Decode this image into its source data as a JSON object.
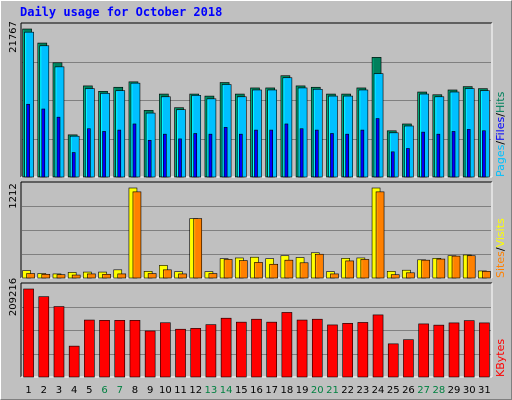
{
  "title": "Daily usage for October 2018",
  "colors": {
    "background": "#c0c0c0",
    "title": "#0000ff",
    "hits": "#00805c",
    "files": "#0000ff",
    "pages": "#00c0ff",
    "sites": "#ff8000",
    "visits": "#ffff00",
    "kbytes": "#ff0000",
    "weekday": "#000000",
    "weekend": "#008040"
  },
  "chart_data": [
    {
      "type": "bar",
      "panel": "hits-files-pages",
      "axis_label": "21767",
      "legend": [
        "Pages",
        "/",
        "Files",
        "/",
        "Hits"
      ],
      "x": [
        1,
        2,
        3,
        4,
        5,
        6,
        7,
        8,
        9,
        10,
        11,
        12,
        13,
        14,
        15,
        16,
        17,
        18,
        19,
        20,
        21,
        22,
        23,
        24,
        25,
        26,
        27,
        28,
        29,
        30,
        31
      ],
      "ylim": [
        0,
        21767
      ],
      "series": [
        {
          "name": "Hits",
          "values": [
            21767,
            19700,
            16800,
            6200,
            13400,
            12600,
            13200,
            14000,
            9800,
            12200,
            10200,
            12200,
            11900,
            13900,
            12200,
            13100,
            13100,
            14900,
            13400,
            13200,
            12200,
            12200,
            13100,
            17600,
            6800,
            7800,
            12500,
            12100,
            12800,
            13300,
            13000
          ]
        },
        {
          "name": "Files",
          "values": [
            10700,
            10000,
            8800,
            3600,
            7100,
            6700,
            6900,
            7800,
            5400,
            6300,
            5600,
            6400,
            6300,
            7300,
            6300,
            6900,
            6900,
            7800,
            7100,
            6900,
            6400,
            6300,
            6900,
            8600,
            3700,
            4200,
            6600,
            6300,
            6700,
            7000,
            6800
          ]
        },
        {
          "name": "Pages",
          "values": [
            21300,
            19300,
            16200,
            6000,
            13000,
            12300,
            12700,
            13800,
            9400,
            11800,
            9900,
            12000,
            11500,
            13600,
            11800,
            12800,
            12800,
            14600,
            13100,
            12900,
            11900,
            11900,
            12800,
            15200,
            6500,
            7500,
            12200,
            11800,
            12500,
            13000,
            12700
          ]
        }
      ]
    },
    {
      "type": "bar",
      "panel": "sites-visits",
      "axis_label": "1212",
      "legend": [
        "Sites",
        "/",
        "Visits"
      ],
      "x": [
        1,
        2,
        3,
        4,
        5,
        6,
        7,
        8,
        9,
        10,
        11,
        12,
        13,
        14,
        15,
        16,
        17,
        18,
        19,
        20,
        21,
        22,
        23,
        24,
        25,
        26,
        27,
        28,
        29,
        30,
        31
      ],
      "ylim": [
        0,
        1212
      ],
      "series": [
        {
          "name": "Sites",
          "values": [
            60,
            50,
            45,
            40,
            55,
            50,
            55,
            1160,
            60,
            110,
            55,
            800,
            60,
            250,
            235,
            210,
            185,
            240,
            205,
            320,
            55,
            230,
            250,
            1160,
            45,
            70,
            240,
            255,
            295,
            300,
            90
          ]
        },
        {
          "name": "Visits",
          "values": [
            100,
            60,
            55,
            75,
            80,
            80,
            110,
            1212,
            90,
            170,
            85,
            800,
            85,
            260,
            270,
            280,
            260,
            300,
            275,
            340,
            85,
            265,
            270,
            1212,
            90,
            105,
            245,
            265,
            300,
            310,
            95
          ]
        }
      ]
    },
    {
      "type": "bar",
      "panel": "kbytes",
      "axis_label": "209216",
      "legend": [
        "KBytes"
      ],
      "x": [
        1,
        2,
        3,
        4,
        5,
        6,
        7,
        8,
        9,
        10,
        11,
        12,
        13,
        14,
        15,
        16,
        17,
        18,
        19,
        20,
        21,
        22,
        23,
        24,
        25,
        26,
        27,
        28,
        29,
        30,
        31
      ],
      "ylim": [
        0,
        209216
      ],
      "series": [
        {
          "name": "KBytes",
          "values": [
            209216,
            191000,
            167500,
            73400,
            135400,
            134700,
            134700,
            134700,
            109400,
            129000,
            113600,
            115600,
            124500,
            139800,
            130400,
            137400,
            130400,
            153500,
            135400,
            137400,
            123800,
            127600,
            129700,
            147600,
            78800,
            88700,
            126200,
            123300,
            128600,
            134100,
            128600
          ]
        }
      ]
    }
  ],
  "weekend_days": [
    6,
    7,
    13,
    14,
    20,
    21,
    27,
    28
  ]
}
